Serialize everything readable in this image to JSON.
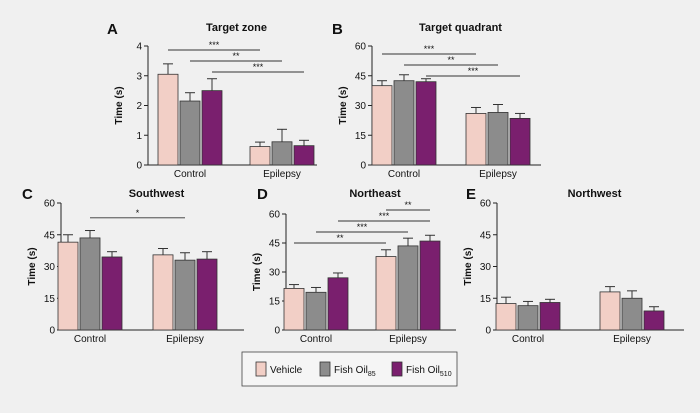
{
  "legend": {
    "items": [
      {
        "main": "Vehicle",
        "sub": "",
        "color": "#f2cfc6"
      },
      {
        "main": "Fish Oil",
        "sub": "85",
        "color": "#8c8c8c"
      },
      {
        "main": "Fish Oil",
        "sub": "510",
        "color": "#7a1f6e"
      }
    ]
  },
  "chart_data": [
    {
      "panel": "A",
      "title": "Target zone",
      "type": "bar",
      "ylabel": "Time (s)",
      "ylim": [
        0,
        4
      ],
      "yticks": [
        "0",
        "1",
        "2",
        "3",
        "4"
      ],
      "categories": [
        "Control",
        "Epilepsy"
      ],
      "series": [
        {
          "values": [
            3.05,
            0.62
          ],
          "errors": [
            0.35,
            0.15
          ]
        },
        {
          "values": [
            2.15,
            0.78
          ],
          "errors": [
            0.28,
            0.42
          ]
        },
        {
          "values": [
            2.5,
            0.65
          ],
          "errors": [
            0.4,
            0.18
          ]
        }
      ],
      "significance": [
        {
          "label": "***",
          "from": [
            0,
            0
          ],
          "to": [
            1,
            0
          ]
        },
        {
          "label": "**",
          "from": [
            0,
            1
          ],
          "to": [
            1,
            1
          ]
        },
        {
          "label": "***",
          "from": [
            0,
            2
          ],
          "to": [
            1,
            2
          ]
        }
      ]
    },
    {
      "panel": "B",
      "title": "Target quadrant",
      "type": "bar",
      "ylabel": "Time (s)",
      "ylim": [
        0,
        60
      ],
      "yticks": [
        "0",
        "15",
        "30",
        "45",
        "60"
      ],
      "categories": [
        "Control",
        "Epilepsy"
      ],
      "series": [
        {
          "values": [
            40,
            26
          ],
          "errors": [
            2.5,
            3
          ]
        },
        {
          "values": [
            42.5,
            26.5
          ],
          "errors": [
            3,
            4
          ]
        },
        {
          "values": [
            42,
            23.5
          ],
          "errors": [
            1.5,
            2.5
          ]
        }
      ],
      "significance": [
        {
          "label": "***",
          "from": [
            0,
            0
          ],
          "to": [
            1,
            0
          ]
        },
        {
          "label": "**",
          "from": [
            0,
            1
          ],
          "to": [
            1,
            1
          ]
        },
        {
          "label": "***",
          "from": [
            0,
            2
          ],
          "to": [
            1,
            2
          ]
        }
      ]
    },
    {
      "panel": "C",
      "title": "Southwest",
      "type": "bar",
      "ylabel": "Time (s)",
      "ylim": [
        0,
        60
      ],
      "yticks": [
        "0",
        "15",
        "30",
        "45",
        "60"
      ],
      "categories": [
        "Control",
        "Epilepsy"
      ],
      "series": [
        {
          "values": [
            41.5,
            35.5
          ],
          "errors": [
            3.5,
            3
          ]
        },
        {
          "values": [
            43.5,
            33
          ],
          "errors": [
            3.5,
            3.5
          ]
        },
        {
          "values": [
            34.5,
            33.5
          ],
          "errors": [
            2.5,
            3.5
          ]
        }
      ],
      "significance": [
        {
          "label": "*",
          "from": [
            0,
            1
          ],
          "to": [
            1,
            1
          ]
        }
      ]
    },
    {
      "panel": "D",
      "title": "Northeast",
      "type": "bar",
      "ylabel": "Time (s)",
      "ylim": [
        0,
        60
      ],
      "yticks": [
        "0",
        "15",
        "30",
        "45",
        "60"
      ],
      "categories": [
        "Control",
        "Epilepsy"
      ],
      "series": [
        {
          "values": [
            21.5,
            38
          ],
          "errors": [
            2,
            3.5
          ]
        },
        {
          "values": [
            19.5,
            43.5
          ],
          "errors": [
            2.5,
            4
          ]
        },
        {
          "values": [
            27,
            46
          ],
          "errors": [
            2.5,
            3
          ]
        }
      ],
      "significance": [
        {
          "label": "**",
          "from": [
            0,
            0
          ],
          "to": [
            1,
            0
          ]
        },
        {
          "label": "***",
          "from": [
            0,
            1
          ],
          "to": [
            1,
            1
          ]
        },
        {
          "label": "***",
          "from": [
            0,
            2
          ],
          "to": [
            1,
            2
          ]
        },
        {
          "label": "**",
          "from": [
            1,
            0
          ],
          "to": [
            1,
            2
          ]
        }
      ]
    },
    {
      "panel": "E",
      "title": "Northwest",
      "type": "bar",
      "ylabel": "Time (s)",
      "ylim": [
        0,
        60
      ],
      "yticks": [
        "0",
        "15",
        "30",
        "45",
        "60"
      ],
      "categories": [
        "Control",
        "Epilepsy"
      ],
      "series": [
        {
          "values": [
            12.5,
            18
          ],
          "errors": [
            3,
            2.5
          ]
        },
        {
          "values": [
            11.5,
            15
          ],
          "errors": [
            2,
            3.5
          ]
        },
        {
          "values": [
            13,
            9
          ],
          "errors": [
            1.5,
            2
          ]
        }
      ],
      "significance": []
    }
  ]
}
